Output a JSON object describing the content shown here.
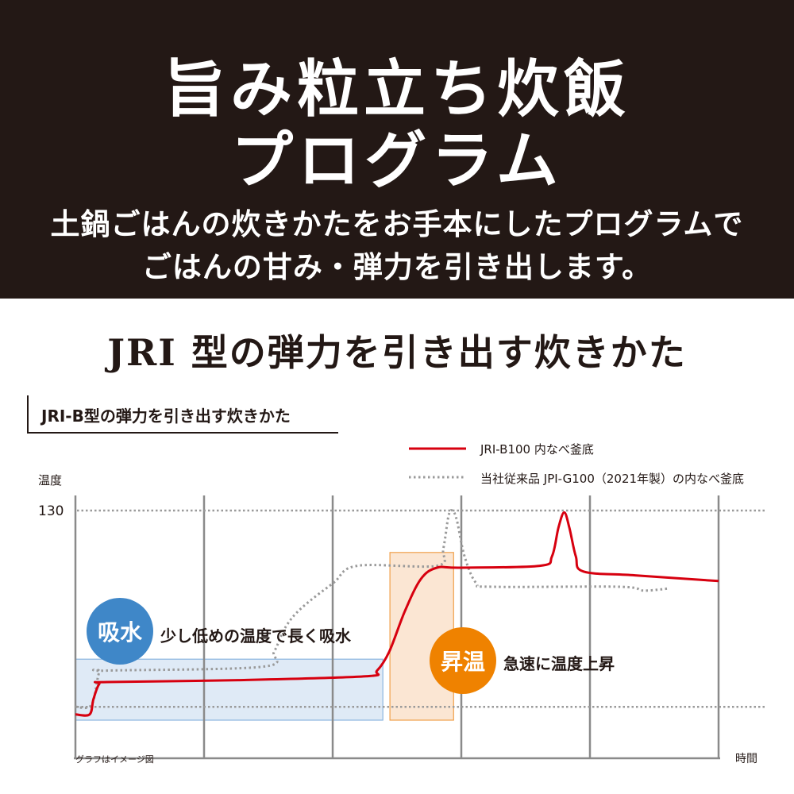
{
  "hero": {
    "title_line1": "旨み粒立ち炊飯",
    "title_line2": "プログラム",
    "subtitle_line1": "土鍋ごはんの炊きかたをお手本にしたプログラムで",
    "subtitle_line2": "ごはんの甘み・弾力を引き出します。"
  },
  "section_heading": "JRI 型の弾力を引き出す炊きかた",
  "chart_subheading": "JRI-B型の弾力を引き出す炊きかた",
  "chart_data": {
    "type": "line",
    "ylabel": "温度",
    "xlabel": "時間",
    "yticks": [
      130
    ],
    "ylim": [
      0,
      140
    ],
    "xlim": [
      0,
      100
    ],
    "grid": "vertical lines and dotted horizontal reference lines",
    "reference_lines_y": [
      130,
      27
    ],
    "legend_position": "top-right",
    "note": "グラフはイメージ図",
    "colors": {
      "red": "#d7000f",
      "gray": "#9a9a9a",
      "blue_box": "#dfeaf6",
      "orange_box": "#fbe6d3",
      "blue_badge": "#3f87c8",
      "orange_badge": "#ef8200"
    },
    "series": [
      {
        "name": "JRI-B100 内なべ釜底",
        "style": "solid",
        "color": "#d7000f",
        "x": [
          0,
          2.2,
          2.8,
          3.7,
          4.9,
          25.3,
          45.1,
          46.9,
          48.8,
          51.2,
          53.7,
          56.2,
          59.9,
          72.2,
          74.1,
          75.1,
          76.0,
          76.8,
          77.8,
          79.0,
          87.0,
          100
        ],
        "y": [
          23,
          23,
          31,
          39,
          40,
          41,
          43,
          46,
          56,
          77,
          94,
          100,
          100,
          101,
          106,
          121,
          129,
          121,
          106,
          98,
          96,
          93
        ]
      },
      {
        "name": "当社従来品 JPI-G100（2021年製）の内なべ釜底",
        "style": "dotted",
        "color": "#9a9a9a",
        "x": [
          0,
          2.5,
          3.7,
          4.9,
          29.0,
          30.9,
          32.7,
          35.2,
          40.1,
          43.8,
          56.2,
          57.2,
          58.0,
          58.6,
          59.3,
          60.5,
          62.3,
          64.8,
          84.6,
          88.3,
          92.0
        ],
        "y": [
          27,
          28,
          45,
          46,
          48,
          56,
          69,
          79,
          92,
          101,
          101,
          110,
          127,
          130,
          125,
          106,
          92,
          90,
          90,
          88,
          89
        ]
      }
    ],
    "annotations": [
      {
        "badge": "吸水",
        "text": "少し低めの温度で長く吸水",
        "x_range": [
          0,
          47.8
        ],
        "y_range": [
          20,
          52
        ]
      },
      {
        "badge": "昇温",
        "text": "急速に温度上昇",
        "x_range": [
          48.9,
          58.8
        ],
        "y_range": [
          20,
          108
        ]
      }
    ]
  }
}
